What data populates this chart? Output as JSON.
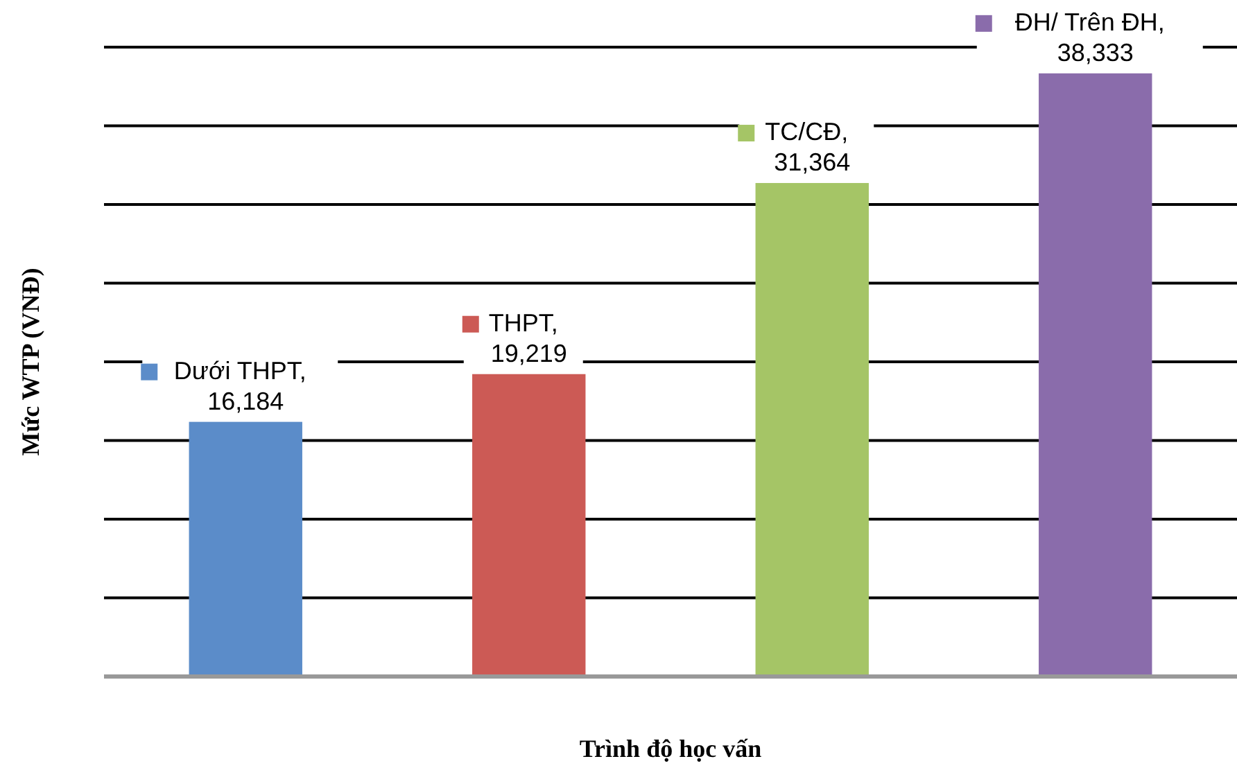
{
  "chart_data": {
    "type": "bar",
    "ylabel": "Mức WTP (VNĐ)",
    "xlabel": "Trình độ học vấn",
    "categories": [
      null,
      null,
      null,
      null
    ],
    "values": [
      16184,
      19219,
      31364,
      38333
    ],
    "value_labels": [
      "Dưới THPT, 16,184",
      "THPT, 19,219",
      "TC/CĐ, 31,364",
      "ĐH/ Trên ĐH, 38,333"
    ],
    "colors": [
      "#5b8cc9",
      "#cc5a55",
      "#a5c566",
      "#8a6cab"
    ],
    "ylim": [
      0,
      40000
    ],
    "yticks": [
      {
        "value": 0,
        "label": null
      },
      {
        "value": 5000,
        "label": null
      },
      {
        "value": 10000,
        "label": null
      },
      {
        "value": 15000,
        "label": null
      },
      {
        "value": 20000,
        "label": null
      },
      {
        "value": 25000,
        "label": null
      },
      {
        "value": 30000,
        "label": null
      },
      {
        "value": 35000,
        "label": null
      },
      {
        "value": 40000,
        "label": null
      }
    ],
    "grid": "y"
  }
}
